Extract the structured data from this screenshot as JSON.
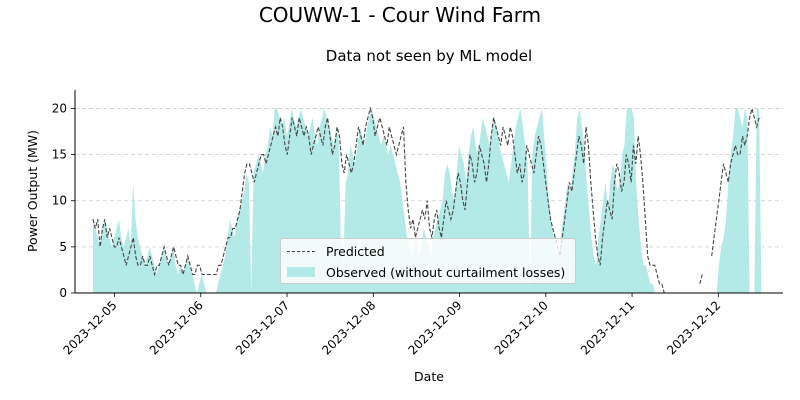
{
  "figure": {
    "suptitle": "COUWW-1 - Cour Wind Farm",
    "subtitle": "Data not seen by ML model"
  },
  "chart_data": {
    "type": "area",
    "title": "Data not seen by ML model",
    "xlabel": "Date",
    "ylabel": "Power Output (MW)",
    "x_start": "2023-12-04T18:00",
    "x_end": "2023-12-12T12:00",
    "xlim": [
      "2023-12-04T13:00",
      "2023-12-12T18:00"
    ],
    "ylim": [
      0,
      22
    ],
    "xticks": [
      "2023-12-05",
      "2023-12-06",
      "2023-12-07",
      "2023-12-08",
      "2023-12-09",
      "2023-12-10",
      "2023-12-11",
      "2023-12-12"
    ],
    "yticks": [
      0,
      5,
      10,
      15,
      20
    ],
    "grid": "y dashed",
    "legend_location": "lower center",
    "series": [
      {
        "name": "Predicted",
        "style": "dashed line",
        "color": "#444444",
        "values": [
          8,
          7,
          8,
          5,
          7,
          8,
          6,
          7,
          6,
          5,
          5,
          6,
          5,
          4,
          3,
          4,
          5,
          6,
          4,
          3,
          3,
          4,
          3,
          3,
          4,
          3,
          2,
          3,
          3,
          4,
          5,
          4,
          3,
          4,
          5,
          4,
          3,
          3,
          2,
          3,
          4,
          3,
          2,
          2,
          3,
          3,
          2,
          2,
          2,
          2,
          2,
          2,
          2,
          3,
          3,
          4,
          5,
          6,
          6,
          7,
          7,
          8,
          9,
          11,
          13,
          14,
          14,
          13,
          12,
          13,
          14,
          15,
          15,
          14,
          15,
          16,
          17,
          18,
          17,
          19,
          18,
          16,
          15,
          17,
          19,
          18,
          17,
          19,
          18,
          17,
          18,
          17,
          15,
          16,
          17,
          18,
          17,
          16,
          18,
          19,
          17,
          15,
          16,
          18,
          17,
          14,
          13,
          15,
          14,
          13,
          14,
          16,
          18,
          17,
          16,
          18,
          19,
          20,
          19,
          17,
          18,
          19,
          18,
          17,
          16,
          18,
          17,
          16,
          15,
          16,
          17,
          18,
          12,
          9,
          7,
          8,
          6,
          7,
          8,
          9,
          8,
          10,
          7,
          6,
          8,
          9,
          7,
          6,
          8,
          10,
          9,
          8,
          9,
          11,
          13,
          12,
          10,
          9,
          12,
          15,
          14,
          12,
          13,
          16,
          15,
          14,
          12,
          14,
          17,
          19,
          18,
          17,
          16,
          18,
          17,
          16,
          18,
          17,
          15,
          13,
          14,
          12,
          13,
          16,
          15,
          14,
          13,
          15,
          17,
          16,
          14,
          12,
          10,
          8,
          7,
          6,
          5,
          4,
          6,
          8,
          10,
          12,
          11,
          13,
          15,
          17,
          16,
          14,
          18,
          16,
          12,
          9,
          6,
          4,
          3,
          6,
          8,
          10,
          9,
          8,
          12,
          14,
          13,
          11,
          12,
          15,
          14,
          12,
          16,
          14,
          17,
          15,
          12,
          8,
          4,
          3,
          3,
          3,
          2,
          1,
          1,
          0,
          0,
          0,
          0,
          0,
          null,
          null,
          null,
          null,
          null,
          null,
          null,
          null,
          null,
          null,
          1,
          2,
          null,
          null,
          null,
          4,
          6,
          8,
          10,
          12,
          14,
          13,
          12,
          14,
          15,
          16,
          15,
          15,
          17,
          16,
          17,
          19,
          20,
          19,
          18,
          19,
          19
        ]
      },
      {
        "name": "Observed (without curtailment losses)",
        "style": "filled area",
        "color": "#b3e9e6",
        "values": [
          8,
          7,
          6,
          5,
          7,
          8,
          7,
          6,
          5,
          6,
          7,
          8,
          6,
          5,
          6,
          7,
          5,
          12,
          8,
          6,
          5,
          4,
          3,
          4,
          5,
          4,
          3,
          2,
          3,
          4,
          5,
          4,
          3,
          4,
          5,
          3,
          2,
          3,
          2,
          3,
          4,
          3,
          2,
          1,
          0,
          1,
          2,
          1,
          0,
          0,
          0,
          0,
          0,
          1,
          2,
          3,
          4,
          6,
          8,
          7,
          6,
          8,
          9,
          10,
          11,
          13,
          12,
          0,
          13,
          14,
          15,
          14,
          13,
          15,
          16,
          18,
          17,
          20,
          20,
          19,
          18,
          19,
          17,
          18,
          20,
          19,
          18,
          19,
          20,
          19,
          18,
          17,
          18,
          19,
          17,
          16,
          18,
          19,
          20,
          19,
          18,
          17,
          16,
          18,
          17,
          5,
          3,
          12,
          13,
          16,
          15,
          14,
          16,
          18,
          17,
          16,
          18,
          19,
          20,
          19,
          18,
          17,
          16,
          17,
          16,
          15,
          16,
          15,
          14,
          13,
          12,
          10,
          8,
          6,
          5,
          4,
          5,
          6,
          4,
          5,
          7,
          6,
          5,
          4,
          6,
          7,
          8,
          9,
          10,
          13,
          14,
          13,
          11,
          10,
          13,
          16,
          15,
          14,
          12,
          15,
          17,
          18,
          16,
          15,
          17,
          19,
          18,
          17,
          16,
          18,
          19,
          18,
          16,
          15,
          14,
          13,
          12,
          14,
          16,
          18,
          19,
          20,
          18,
          16,
          14,
          0,
          15,
          17,
          18,
          19,
          20,
          17,
          14,
          10,
          8,
          6,
          5,
          4,
          6,
          8,
          10,
          12,
          11,
          13,
          15,
          19,
          20,
          18,
          16,
          12,
          9,
          6,
          4,
          3,
          6,
          8,
          10,
          12,
          9,
          12,
          14,
          13,
          11,
          12,
          15,
          16,
          20,
          20,
          20,
          19,
          12,
          8,
          5,
          3,
          3,
          2,
          1,
          1,
          0,
          0,
          0,
          0,
          0,
          0,
          0,
          0,
          0,
          0,
          0,
          0,
          0,
          0,
          0,
          0,
          0,
          0,
          0,
          0,
          0,
          0,
          0,
          0,
          0,
          0,
          0,
          3,
          5,
          6,
          8,
          12,
          15,
          17,
          20,
          20,
          19,
          18,
          20,
          19,
          0,
          0,
          0,
          20,
          20,
          0
        ]
      }
    ]
  }
}
